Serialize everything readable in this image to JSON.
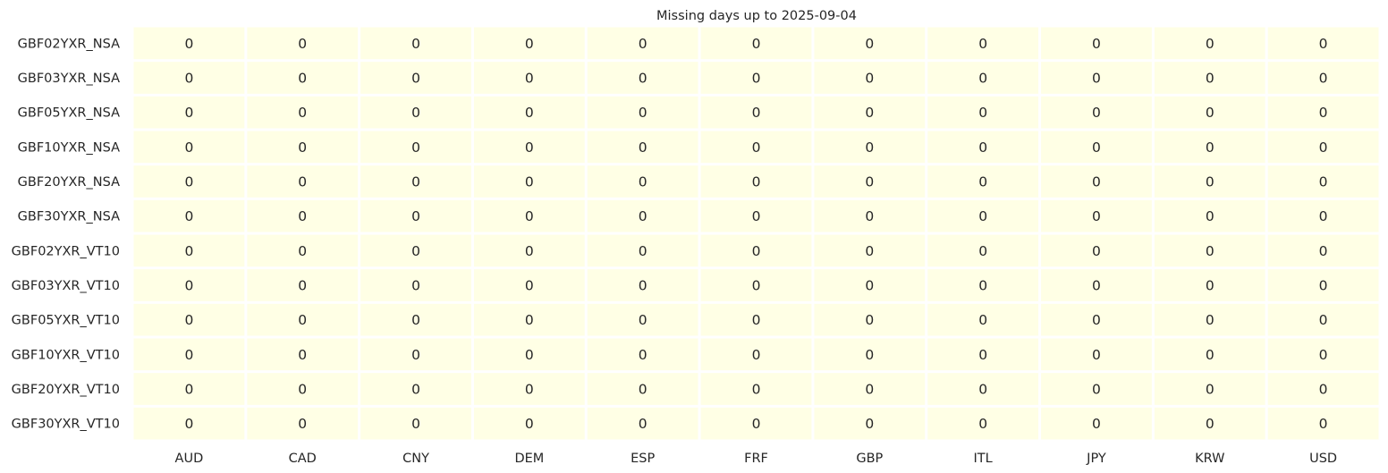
{
  "chart_data": {
    "type": "heatmap",
    "title": "Missing days up to 2025-09-04",
    "xlabel": "",
    "ylabel": "",
    "x_categories": [
      "AUD",
      "CAD",
      "CNY",
      "DEM",
      "ESP",
      "FRF",
      "GBP",
      "ITL",
      "JPY",
      "KRW",
      "USD"
    ],
    "y_categories": [
      "GBF02YXR_NSA",
      "GBF03YXR_NSA",
      "GBF05YXR_NSA",
      "GBF10YXR_NSA",
      "GBF20YXR_NSA",
      "GBF30YXR_NSA",
      "GBF02YXR_VT10",
      "GBF03YXR_VT10",
      "GBF05YXR_VT10",
      "GBF10YXR_VT10",
      "GBF20YXR_VT10",
      "GBF30YXR_VT10"
    ],
    "values": [
      [
        0,
        0,
        0,
        0,
        0,
        0,
        0,
        0,
        0,
        0,
        0
      ],
      [
        0,
        0,
        0,
        0,
        0,
        0,
        0,
        0,
        0,
        0,
        0
      ],
      [
        0,
        0,
        0,
        0,
        0,
        0,
        0,
        0,
        0,
        0,
        0
      ],
      [
        0,
        0,
        0,
        0,
        0,
        0,
        0,
        0,
        0,
        0,
        0
      ],
      [
        0,
        0,
        0,
        0,
        0,
        0,
        0,
        0,
        0,
        0,
        0
      ],
      [
        0,
        0,
        0,
        0,
        0,
        0,
        0,
        0,
        0,
        0,
        0
      ],
      [
        0,
        0,
        0,
        0,
        0,
        0,
        0,
        0,
        0,
        0,
        0
      ],
      [
        0,
        0,
        0,
        0,
        0,
        0,
        0,
        0,
        0,
        0,
        0
      ],
      [
        0,
        0,
        0,
        0,
        0,
        0,
        0,
        0,
        0,
        0,
        0
      ],
      [
        0,
        0,
        0,
        0,
        0,
        0,
        0,
        0,
        0,
        0,
        0
      ],
      [
        0,
        0,
        0,
        0,
        0,
        0,
        0,
        0,
        0,
        0,
        0
      ],
      [
        0,
        0,
        0,
        0,
        0,
        0,
        0,
        0,
        0,
        0,
        0
      ]
    ],
    "annotations": "cell values shown in each cell",
    "colorbar": false,
    "grid": false,
    "colors": {
      "cell_fill": "#ffffe5",
      "cell_separator": "#ffffff",
      "cell_text": "#262626",
      "tick_text": "#262626"
    }
  }
}
